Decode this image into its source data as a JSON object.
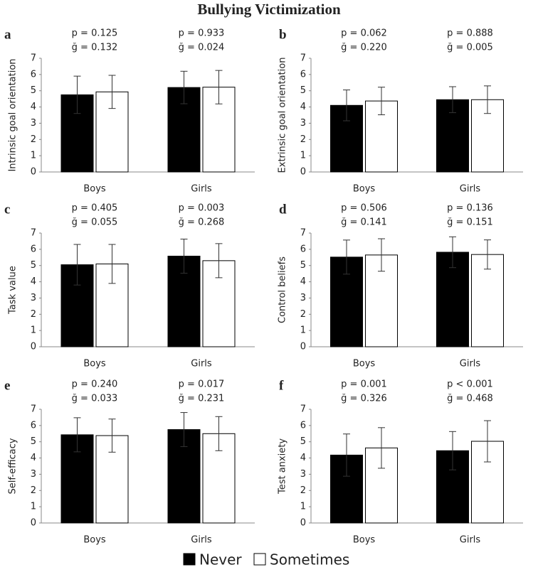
{
  "title": "Bullying Victimization",
  "legend": [
    {
      "name": "Never",
      "color": "#000000"
    },
    {
      "name": "Sometimes",
      "color": "#ffffff"
    }
  ],
  "chart_data": [
    {
      "type": "bar",
      "label": "a",
      "y_label": "Intrinsic goal orientation",
      "categories": [
        "Boys",
        "Girls"
      ],
      "annotations": [
        [
          "p = 0.125",
          "ğ = 0.132"
        ],
        [
          "p = 0.933",
          "ğ = 0.024"
        ]
      ],
      "series": [
        {
          "values": [
            4.75,
            5.2
          ],
          "errors": [
            1.15,
            1.0
          ]
        },
        {
          "values": [
            4.93,
            5.22
          ],
          "errors": [
            1.02,
            1.03
          ]
        }
      ],
      "ylim": [
        0,
        7
      ],
      "yticks": [
        0,
        1,
        2,
        3,
        4,
        5,
        6,
        7
      ]
    },
    {
      "type": "bar",
      "label": "b",
      "y_label": "Extrinsic goal orientation",
      "categories": [
        "Boys",
        "Girls"
      ],
      "annotations": [
        [
          "p = 0.062",
          "ğ = 0.220"
        ],
        [
          "p = 0.888",
          "ğ = 0.005"
        ]
      ],
      "series": [
        {
          "values": [
            4.1,
            4.45
          ],
          "errors": [
            0.95,
            0.8
          ]
        },
        {
          "values": [
            4.37,
            4.45
          ],
          "errors": [
            0.85,
            0.85
          ]
        }
      ],
      "ylim": [
        0,
        7
      ],
      "yticks": [
        0,
        1,
        2,
        3,
        4,
        5,
        6,
        7
      ]
    },
    {
      "type": "bar",
      "label": "c",
      "y_label": "Task value",
      "categories": [
        "Boys",
        "Girls"
      ],
      "annotations": [
        [
          "p = 0.405",
          "ğ = 0.055"
        ],
        [
          "p = 0.003",
          "ğ = 0.268"
        ]
      ],
      "series": [
        {
          "values": [
            5.05,
            5.58
          ],
          "errors": [
            1.25,
            1.05
          ]
        },
        {
          "values": [
            5.1,
            5.3
          ],
          "errors": [
            1.2,
            1.05
          ]
        }
      ],
      "ylim": [
        0,
        7
      ],
      "yticks": [
        0,
        1,
        2,
        3,
        4,
        5,
        6,
        7
      ]
    },
    {
      "type": "bar",
      "label": "d",
      "y_label": "Control beliefs",
      "categories": [
        "Boys",
        "Girls"
      ],
      "annotations": [
        [
          "p = 0.506",
          "ğ = 0.141"
        ],
        [
          "p = 0.136",
          "ğ = 0.151"
        ]
      ],
      "series": [
        {
          "values": [
            5.52,
            5.82
          ],
          "errors": [
            1.05,
            0.95
          ]
        },
        {
          "values": [
            5.65,
            5.68
          ],
          "errors": [
            1.0,
            0.9
          ]
        }
      ],
      "ylim": [
        0,
        7
      ],
      "yticks": [
        0,
        1,
        2,
        3,
        4,
        5,
        6,
        7
      ]
    },
    {
      "type": "bar",
      "label": "e",
      "y_label": "Self-efficacy",
      "categories": [
        "Boys",
        "Girls"
      ],
      "annotations": [
        [
          "p = 0.240",
          "ğ = 0.033"
        ],
        [
          "p = 0.017",
          "ğ = 0.231"
        ]
      ],
      "series": [
        {
          "values": [
            5.43,
            5.75
          ],
          "errors": [
            1.05,
            1.05
          ]
        },
        {
          "values": [
            5.38,
            5.5
          ],
          "errors": [
            1.02,
            1.05
          ]
        }
      ],
      "ylim": [
        0,
        7
      ],
      "yticks": [
        0,
        1,
        2,
        3,
        4,
        5,
        6,
        7
      ]
    },
    {
      "type": "bar",
      "label": "f",
      "y_label": "Test anxiety",
      "categories": [
        "Boys",
        "Girls"
      ],
      "annotations": [
        [
          "p = 0.001",
          "ğ = 0.326"
        ],
        [
          "p < 0.001",
          "ğ = 0.468"
        ]
      ],
      "series": [
        {
          "values": [
            4.18,
            4.45
          ],
          "errors": [
            1.3,
            1.18
          ]
        },
        {
          "values": [
            4.62,
            5.03
          ],
          "errors": [
            1.25,
            1.27
          ]
        }
      ],
      "ylim": [
        0,
        7
      ],
      "yticks": [
        0,
        1,
        2,
        3,
        4,
        5,
        6,
        7
      ]
    }
  ]
}
